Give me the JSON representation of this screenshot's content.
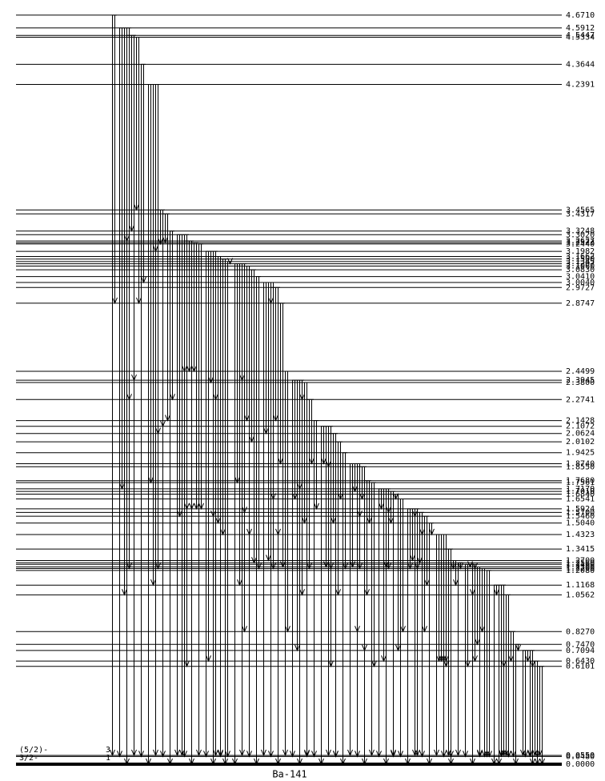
{
  "title": "Ba-141",
  "levels": [
    "4.6710",
    "4.5912",
    "4.5447",
    "4.5334",
    "4.3644",
    "4.2391",
    "3.4565",
    "3.4317",
    "3.3248",
    "3.3020",
    "3.2627",
    "3.2523",
    "3.2440",
    "3.1982",
    "3.1662",
    "3.1500",
    "3.1345",
    "3.1207",
    "3.1060",
    "3.0830",
    "3.0410",
    "3.0040",
    "2.9727",
    "2.8747",
    "2.4499",
    "2.3945",
    "2.3800",
    "2.2741",
    "2.1428",
    "2.1072",
    "2.0624",
    "2.0102",
    "1.9425",
    "1.8740",
    "1.8550",
    "1.7680",
    "1.7561",
    "1.7170",
    "1.7010",
    "1.6840",
    "1.6541",
    "1.5924",
    "1.5700",
    "1.5460",
    "1.5040",
    "1.4323",
    "1.3415",
    "1.2700",
    "1.2560",
    "1.2460",
    "1.2300",
    "1.2200",
    "1.2080",
    "1.1168",
    "1.0562",
    "0.8270",
    "0.7470",
    "0.7094",
    "0.6430",
    "0.6101",
    "0.0550",
    "0.0480",
    "0.0000"
  ],
  "ground_labels": {
    "spin_excited": "(5/2)-",
    "spin_ground": "3/2-",
    "marker_upper": "3",
    "marker_lower": "1"
  }
}
